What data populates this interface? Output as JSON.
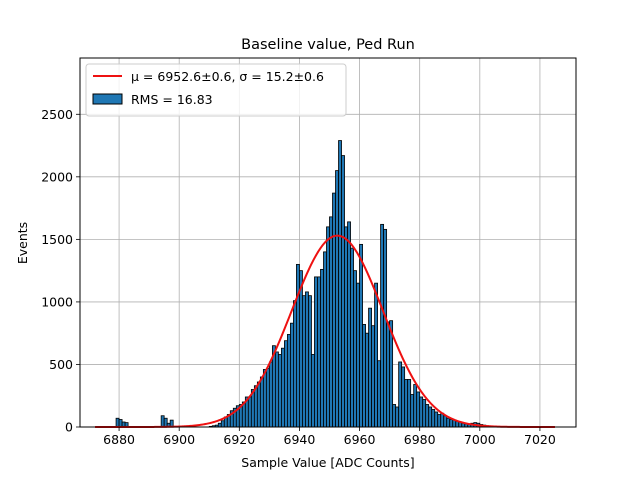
{
  "chart_data": {
    "type": "bar",
    "title": "Baseline value, Ped Run",
    "xlabel": "Sample Value [ADC Counts]",
    "ylabel": "Events",
    "xlim": [
      6867,
      7032
    ],
    "ylim": [
      0,
      2950
    ],
    "xticks": [
      6880,
      6900,
      6920,
      6940,
      6960,
      6980,
      7000,
      7020
    ],
    "yticks": [
      0,
      500,
      1000,
      1500,
      2000,
      2500
    ],
    "grid": true,
    "legend_position": "top-left",
    "legend": {
      "fit_label": "μ = 6952.6±0.6, σ = 15.2±0.6",
      "hist_label": "RMS = 16.83"
    },
    "colors": {
      "bars": "#1f77b4",
      "bar_edge": "#000000",
      "fit": "#ee1111",
      "grid": "#b0b0b0"
    },
    "histogram": {
      "bins": [
        [
          6879,
          70
        ],
        [
          6880,
          60
        ],
        [
          6881,
          40
        ],
        [
          6882,
          35
        ],
        [
          6894,
          90
        ],
        [
          6895,
          70
        ],
        [
          6896,
          30
        ],
        [
          6897,
          55
        ],
        [
          6910,
          5
        ],
        [
          6911,
          10
        ],
        [
          6912,
          15
        ],
        [
          6913,
          30
        ],
        [
          6914,
          50
        ],
        [
          6915,
          80
        ],
        [
          6916,
          100
        ],
        [
          6917,
          130
        ],
        [
          6918,
          150
        ],
        [
          6919,
          170
        ],
        [
          6920,
          180
        ],
        [
          6921,
          200
        ],
        [
          6922,
          240
        ],
        [
          6923,
          240
        ],
        [
          6924,
          300
        ],
        [
          6925,
          330
        ],
        [
          6926,
          360
        ],
        [
          6927,
          400
        ],
        [
          6928,
          460
        ],
        [
          6929,
          470
        ],
        [
          6930,
          520
        ],
        [
          6931,
          650
        ],
        [
          6932,
          600
        ],
        [
          6933,
          580
        ],
        [
          6934,
          630
        ],
        [
          6935,
          690
        ],
        [
          6936,
          740
        ],
        [
          6937,
          830
        ],
        [
          6938,
          1010
        ],
        [
          6939,
          1300
        ],
        [
          6940,
          1250
        ],
        [
          6941,
          1050
        ],
        [
          6942,
          1080
        ],
        [
          6943,
          1050
        ],
        [
          6944,
          580
        ],
        [
          6945,
          1200
        ],
        [
          6946,
          1200
        ],
        [
          6947,
          1260
        ],
        [
          6948,
          1400
        ],
        [
          6949,
          1600
        ],
        [
          6950,
          1680
        ],
        [
          6951,
          1870
        ],
        [
          6952,
          2050
        ],
        [
          6953,
          2290
        ],
        [
          6954,
          2170
        ],
        [
          6955,
          1600
        ],
        [
          6956,
          1640
        ],
        [
          6957,
          1430
        ],
        [
          6958,
          1250
        ],
        [
          6959,
          1150
        ],
        [
          6960,
          1460
        ],
        [
          6961,
          820
        ],
        [
          6962,
          750
        ],
        [
          6963,
          950
        ],
        [
          6964,
          810
        ],
        [
          6965,
          1150
        ],
        [
          6966,
          530
        ],
        [
          6967,
          1620
        ],
        [
          6968,
          1580
        ],
        [
          6969,
          840
        ],
        [
          6970,
          850
        ],
        [
          6971,
          180
        ],
        [
          6972,
          160
        ],
        [
          6973,
          520
        ],
        [
          6974,
          480
        ],
        [
          6975,
          380
        ],
        [
          6976,
          380
        ],
        [
          6977,
          260
        ],
        [
          6978,
          340
        ],
        [
          6979,
          280
        ],
        [
          6980,
          240
        ],
        [
          6981,
          220
        ],
        [
          6982,
          180
        ],
        [
          6983,
          160
        ],
        [
          6984,
          140
        ],
        [
          6985,
          120
        ],
        [
          6986,
          100
        ],
        [
          6987,
          110
        ],
        [
          6988,
          90
        ],
        [
          6989,
          70
        ],
        [
          6990,
          60
        ],
        [
          6991,
          55
        ],
        [
          6992,
          45
        ],
        [
          6993,
          40
        ],
        [
          6994,
          30
        ],
        [
          6995,
          25
        ],
        [
          6996,
          20
        ],
        [
          6997,
          30
        ],
        [
          6998,
          35
        ],
        [
          6999,
          30
        ],
        [
          7000,
          20
        ],
        [
          7001,
          15
        ],
        [
          7002,
          10
        ],
        [
          7003,
          5
        ]
      ]
    },
    "fit": {
      "mu": 6952.6,
      "sigma": 15.2,
      "amplitude": 1530,
      "x_range": [
        6872,
        7025
      ]
    }
  }
}
